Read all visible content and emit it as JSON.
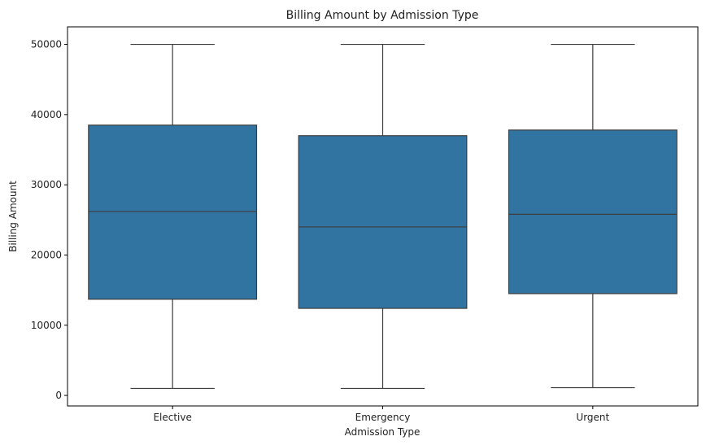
{
  "chart_data": {
    "type": "box",
    "title": "Billing Amount by Admission Type",
    "xlabel": "Admission Type",
    "ylabel": "Billing Amount",
    "categories": [
      "Elective",
      "Emergency",
      "Urgent"
    ],
    "boxes": [
      {
        "category": "Elective",
        "min": 1000,
        "q1": 13700,
        "median": 26200,
        "q3": 38500,
        "max": 50000
      },
      {
        "category": "Emergency",
        "min": 1000,
        "q1": 12400,
        "median": 24000,
        "q3": 37000,
        "max": 50000
      },
      {
        "category": "Urgent",
        "min": 1100,
        "q1": 14500,
        "median": 25800,
        "q3": 37800,
        "max": 50000
      }
    ],
    "yticks": [
      0,
      10000,
      20000,
      30000,
      40000,
      50000
    ],
    "ytick_labels": [
      "0",
      "10000",
      "20000",
      "30000",
      "40000",
      "50000"
    ],
    "ylim": [
      -1500,
      52500
    ],
    "grid": false,
    "colors": {
      "box_fill": "#3274a1",
      "line": "#3d3d3d",
      "axis": "#000000"
    }
  }
}
